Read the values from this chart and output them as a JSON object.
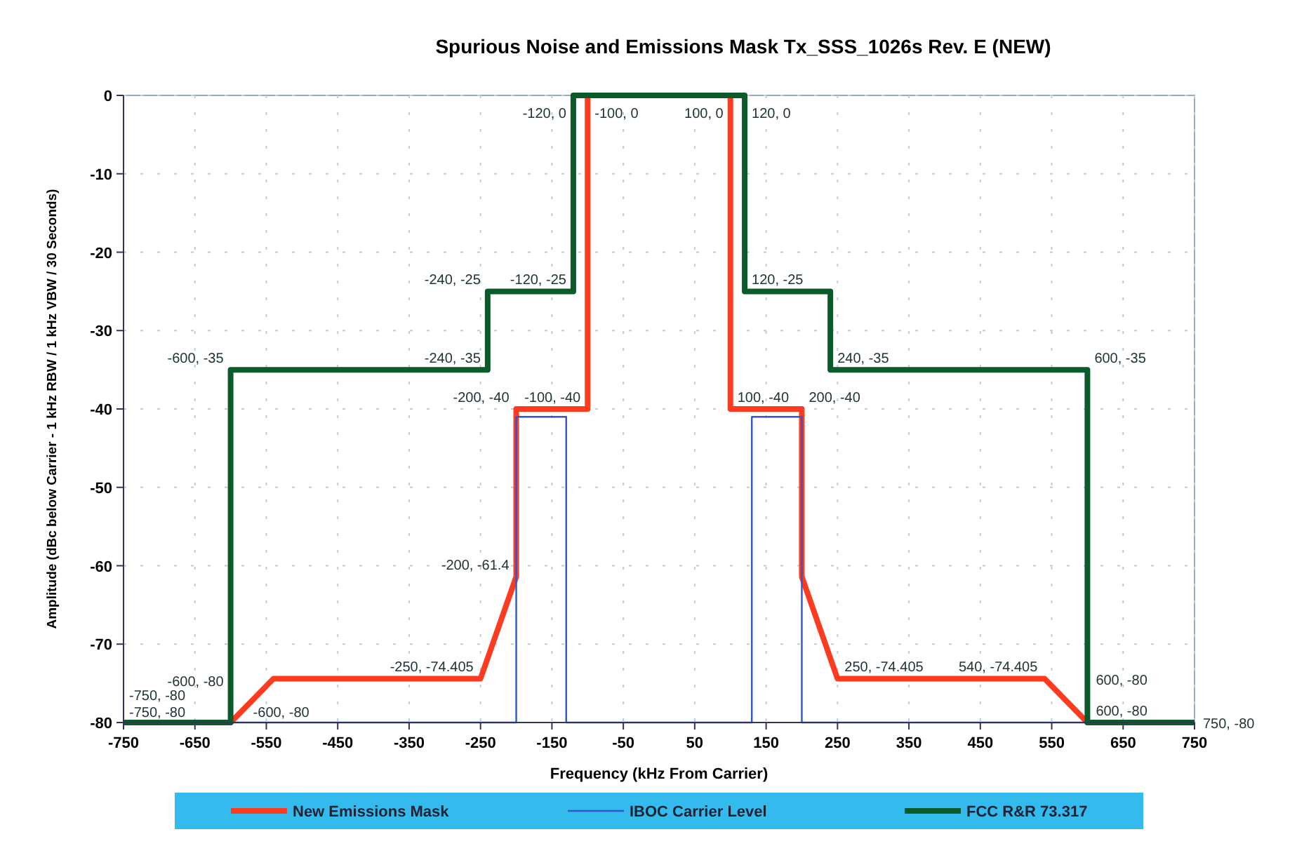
{
  "chart_data": {
    "type": "line",
    "title": "Spurious Noise and Emissions Mask Tx_SSS_1026s Rev. E (NEW)",
    "xlabel": "Frequency (kHz From Carrier)",
    "ylabel": "Amplitude (dBc below Carrier - 1 kHz RBW / 1 kHz VBW / 30 Seconds)",
    "xlim": [
      -750,
      750
    ],
    "xticks": [
      -750,
      -650,
      -550,
      -450,
      -350,
      -250,
      -150,
      -50,
      50,
      150,
      250,
      350,
      450,
      550,
      650,
      750
    ],
    "ylim": [
      -80,
      0
    ],
    "yticks": [
      -80,
      -70,
      -60,
      -50,
      -40,
      -30,
      -20,
      -10,
      0
    ],
    "grid": true,
    "legend": "bottom",
    "marker": "none",
    "line_style": "solid",
    "series": [
      {
        "name": "New Emissions Mask",
        "color": "#ff3b1f",
        "x": [
          -750,
          -600,
          -540,
          -250,
          -200,
          -200,
          -100,
          -100,
          100,
          100,
          200,
          200,
          250,
          540,
          600,
          750
        ],
        "values": [
          -80,
          -80,
          -74.405,
          -74.405,
          -61.4,
          -40,
          -40,
          0,
          0,
          -40,
          -40,
          -61.4,
          -74.405,
          -74.405,
          -80,
          -80
        ]
      },
      {
        "name": "IBOC Carrier Level",
        "color": "#3355cc",
        "x": [
          -750,
          -200,
          -200,
          -130,
          -130,
          130,
          130,
          200,
          200,
          750
        ],
        "values": [
          -80,
          -80,
          -41,
          -41,
          -80,
          -80,
          -41,
          -41,
          -80,
          -80
        ]
      },
      {
        "name": "FCC R&R 73.317",
        "color": "#0b5a2a",
        "x": [
          -750,
          -600,
          -600,
          -240,
          -240,
          -120,
          -120,
          120,
          120,
          240,
          240,
          600,
          600,
          750
        ],
        "values": [
          -80,
          -80,
          -35,
          -35,
          -25,
          -25,
          0,
          0,
          -25,
          -25,
          -35,
          -35,
          -80,
          -80
        ]
      }
    ],
    "annotations": [
      {
        "text": "-750, -80",
        "x": -750,
        "y": -80
      },
      {
        "text": "-750, -80",
        "x": -750,
        "y": -80
      },
      {
        "text": "-600, -80",
        "x": -600,
        "y": -80
      },
      {
        "text": "-600, -80",
        "x": -600,
        "y": -80
      },
      {
        "text": "-600, -35",
        "x": -600,
        "y": -35
      },
      {
        "text": "-250, -74.405",
        "x": -250,
        "y": -74.405
      },
      {
        "text": "-200, -61.4",
        "x": -200,
        "y": -61.4
      },
      {
        "text": "-200, -40",
        "x": -200,
        "y": -40
      },
      {
        "text": "-240, -35",
        "x": -240,
        "y": -35
      },
      {
        "text": "-240, -25",
        "x": -240,
        "y": -25
      },
      {
        "text": "-120, -25",
        "x": -120,
        "y": -25
      },
      {
        "text": "-100, -40",
        "x": -100,
        "y": -40
      },
      {
        "text": "-120, 0",
        "x": -120,
        "y": 0
      },
      {
        "text": "-100, 0",
        "x": -100,
        "y": 0
      },
      {
        "text": "100, 0",
        "x": 100,
        "y": 0
      },
      {
        "text": "120, 0",
        "x": 120,
        "y": 0
      },
      {
        "text": "120, -25",
        "x": 120,
        "y": -25
      },
      {
        "text": "240, -35",
        "x": 240,
        "y": -35
      },
      {
        "text": "100, -40",
        "x": 100,
        "y": -40
      },
      {
        "text": "200, -40",
        "x": 200,
        "y": -40
      },
      {
        "text": "250, -74.405",
        "x": 250,
        "y": -74.405
      },
      {
        "text": "540, -74.405",
        "x": 540,
        "y": -74.405
      },
      {
        "text": "600, -35",
        "x": 600,
        "y": -35
      },
      {
        "text": "600, -80",
        "x": 600,
        "y": -80
      },
      {
        "text": "600, -80",
        "x": 600,
        "y": -80
      },
      {
        "text": "750, -80",
        "x": 750,
        "y": -80
      }
    ]
  }
}
